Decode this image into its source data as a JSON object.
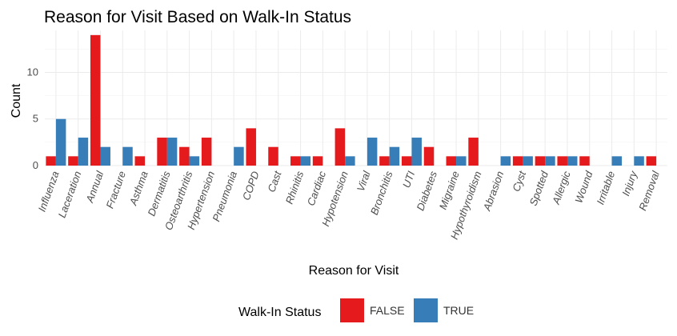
{
  "chart_data": {
    "type": "bar",
    "title": "Reason for Visit Based on Walk-In Status",
    "xlabel": "Reason for Visit",
    "ylabel": "Count",
    "ylim": [
      0,
      14
    ],
    "yticks": [
      0,
      5,
      10
    ],
    "grid": true,
    "legend": {
      "title": "Walk-In Status",
      "placement": "bottom"
    },
    "categories": [
      "Influenza",
      "Laceration",
      "Annual",
      "Fracture",
      "Asthma",
      "Dermatitis",
      "Osteoarthritis",
      "Hypertension",
      "Pneumonia",
      "COPD",
      "Cast",
      "Rhinitis",
      "Cardiac",
      "Hypotension",
      "Viral",
      "Bronchitis",
      "UTI",
      "Diabetes",
      "Migraine",
      "Hypothyroidism",
      "Abrasion",
      "Cyst",
      "Spotted",
      "Allergic",
      "Wound",
      "Irritable",
      "Injury",
      "Removal"
    ],
    "series": [
      {
        "name": "FALSE",
        "color": "#E41A1C",
        "values": [
          1,
          1,
          14,
          null,
          1,
          3,
          2,
          3,
          null,
          4,
          2,
          1,
          1,
          4,
          null,
          1,
          1,
          2,
          1,
          3,
          null,
          1,
          1,
          1,
          1,
          null,
          null,
          1
        ]
      },
      {
        "name": "TRUE",
        "color": "#377EB8",
        "values": [
          5,
          3,
          2,
          2,
          null,
          3,
          1,
          null,
          2,
          null,
          null,
          1,
          null,
          1,
          3,
          2,
          3,
          null,
          1,
          null,
          1,
          1,
          1,
          1,
          null,
          1,
          1,
          null
        ]
      }
    ]
  }
}
